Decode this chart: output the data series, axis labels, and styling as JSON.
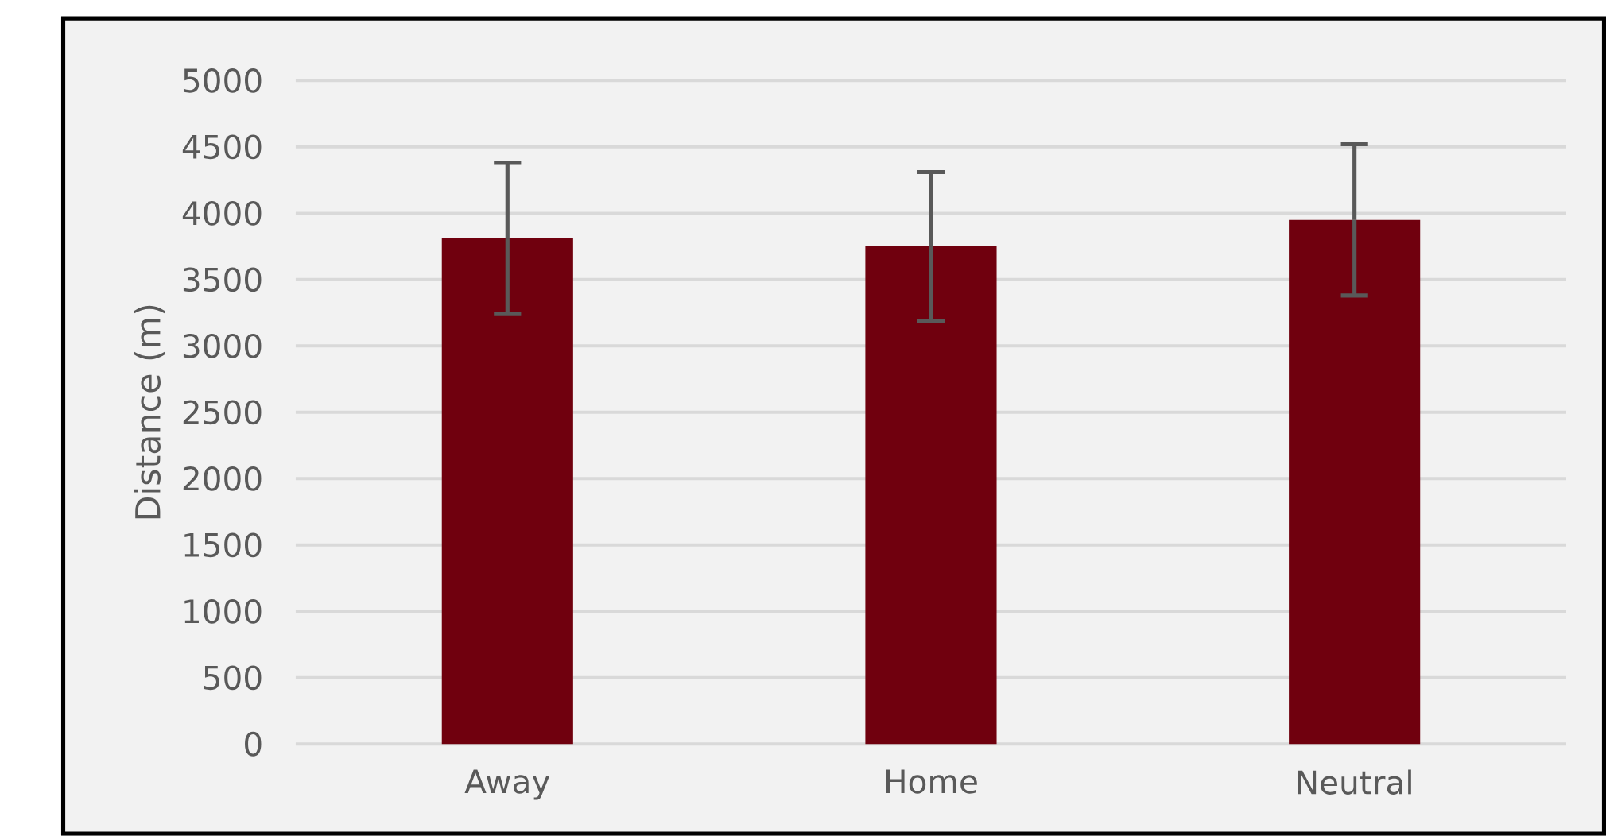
{
  "chart_data": {
    "type": "bar",
    "ylabel": "Distance (m)",
    "categories": [
      "Away",
      "Home",
      "Neutral"
    ],
    "values": [
      3810,
      3750,
      3950
    ],
    "errors": [
      570,
      560,
      570
    ],
    "color": "#70000e",
    "ylim": [
      0,
      5000
    ],
    "yticks": [
      0,
      500,
      1000,
      1500,
      2000,
      2500,
      3000,
      3500,
      4000,
      4500,
      5000
    ],
    "grid": "y"
  }
}
